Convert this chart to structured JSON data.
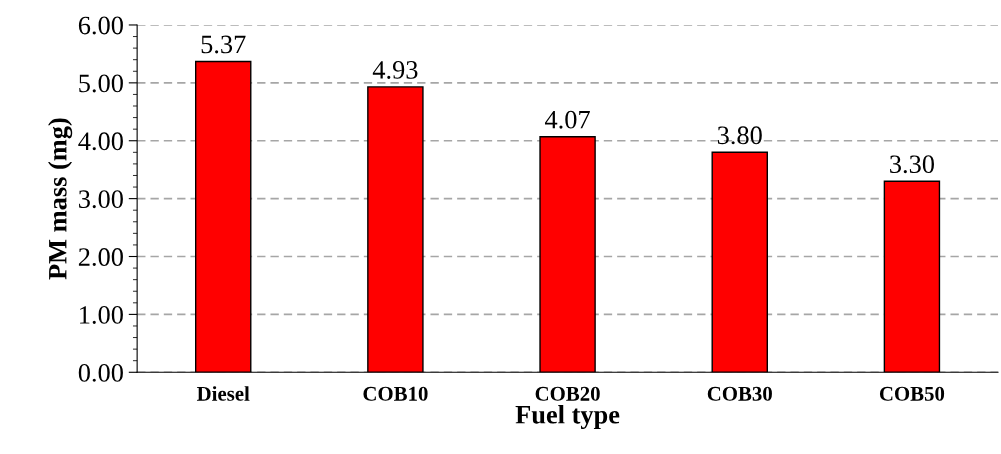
{
  "chart_data": {
    "type": "bar",
    "xlabel": "Fuel type",
    "ylabel": "PM mass (mg)",
    "categories": [
      "Diesel",
      "COB10",
      "COB20",
      "COB30",
      "COB50"
    ],
    "values": [
      5.37,
      4.93,
      4.07,
      3.8,
      3.3
    ],
    "value_labels": [
      "5.37",
      "4.93",
      "4.07",
      "3.80",
      "3.30"
    ],
    "color": "#ff0000",
    "ylim": [
      0,
      6
    ],
    "yticks": [
      {
        "value": 0,
        "label": "0.00"
      },
      {
        "value": 1,
        "label": "1.00"
      },
      {
        "value": 2,
        "label": "2.00"
      },
      {
        "value": 3,
        "label": "3.00"
      },
      {
        "value": 4,
        "label": "4.00"
      },
      {
        "value": 5,
        "label": "5.00"
      },
      {
        "value": 6,
        "label": "6.00"
      }
    ],
    "grid": "y"
  }
}
